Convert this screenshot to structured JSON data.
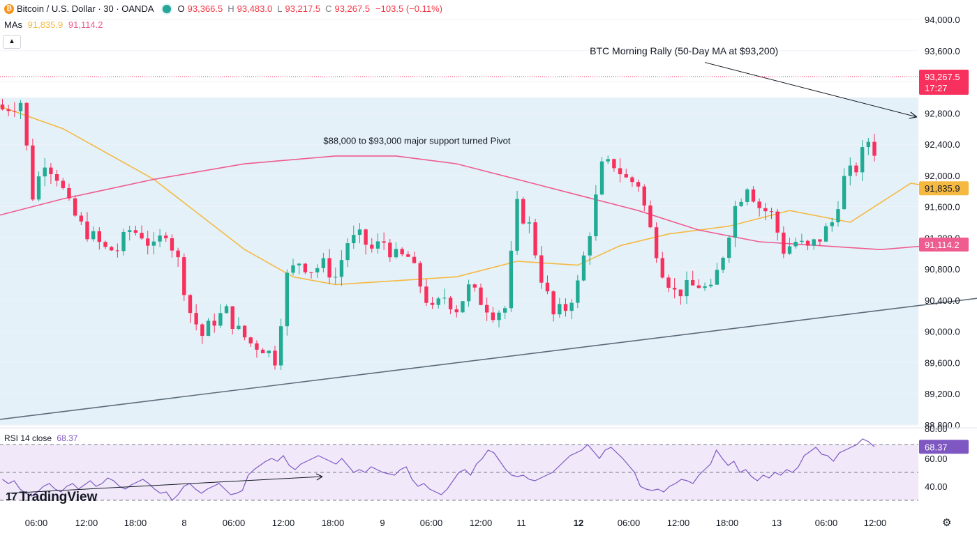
{
  "header": {
    "symbol": "Bitcoin / U.S. Dollar · 30 · OANDA",
    "btc_icon": "₿",
    "open_label": "O",
    "open": "93,366.5",
    "high_label": "H",
    "high": "93,483.0",
    "low_label": "L",
    "low": "93,217.5",
    "close_label": "C",
    "close": "93,267.5",
    "change": "−103.5 (−0.11%)"
  },
  "mas": {
    "label": "MAs",
    "ma1": "91,835.9",
    "ma2": "91,114.2"
  },
  "rsi": {
    "label": "RSI 14 close",
    "value": "68.37"
  },
  "logo": {
    "mark": "17",
    "text": "TradingView"
  },
  "icons": {
    "settings": "gear-icon",
    "collapse": "chevron-up-icon",
    "market_status": "market-open-dot-icon"
  },
  "colors": {
    "up": "#22ab94",
    "down": "#f7305d",
    "ma_fast": "#f5b942",
    "ma_slow": "#ef5c8f",
    "rsi": "#7e57c2",
    "zone": "#e4f1f8",
    "trendline": "#5d6b7a",
    "price_label": "#f7305d"
  },
  "chart_data": {
    "type": "candlestick",
    "title": "Bitcoin / U.S. Dollar · 30 · OANDA",
    "ylim": [
      88800,
      94000
    ],
    "y_ticks": [
      "94,000.0",
      "93,600.0",
      "93,200.0",
      "92,800.0",
      "92,400.0",
      "92,000.0",
      "91,600.0",
      "91,200.0",
      "90,800.0",
      "90,400.0",
      "90,000.0",
      "89,600.0",
      "89,200.0",
      "88,800.0"
    ],
    "x_ticks": [
      "06:00",
      "12:00",
      "18:00",
      "8",
      "06:00",
      "12:00",
      "18:00",
      "9",
      "06:00",
      "12:00",
      "11",
      "12",
      "06:00",
      "12:00",
      "18:00",
      "13",
      "06:00",
      "12:00"
    ],
    "x_ticks_bold": [
      "12"
    ],
    "candle_count": 145,
    "current_price": {
      "value": 93267.5,
      "label": "93,267.5",
      "timer": "17:27"
    },
    "candle_path": [
      [
        0,
        92850
      ],
      [
        3,
        92950
      ],
      [
        5,
        91750
      ],
      [
        7,
        92200
      ],
      [
        9,
        92000
      ],
      [
        11,
        91600
      ],
      [
        13,
        91350
      ],
      [
        15,
        91200
      ],
      [
        17,
        91050
      ],
      [
        19,
        91050
      ],
      [
        21,
        91300
      ],
      [
        23,
        91250
      ],
      [
        25,
        91050
      ],
      [
        27,
        91300
      ],
      [
        29,
        90900
      ],
      [
        31,
        90250
      ],
      [
        33,
        89950
      ],
      [
        35,
        90150
      ],
      [
        37,
        90250
      ],
      [
        39,
        90000
      ],
      [
        41,
        89850
      ],
      [
        43,
        89800
      ],
      [
        45,
        89650
      ],
      [
        47,
        90700
      ],
      [
        49,
        90900
      ],
      [
        51,
        90800
      ],
      [
        53,
        90850
      ],
      [
        55,
        90700
      ],
      [
        57,
        91150
      ],
      [
        59,
        91200
      ],
      [
        61,
        91050
      ],
      [
        63,
        91150
      ],
      [
        65,
        90950
      ],
      [
        67,
        90950
      ],
      [
        69,
        90600
      ],
      [
        71,
        90250
      ],
      [
        73,
        90450
      ],
      [
        75,
        90300
      ],
      [
        77,
        90550
      ],
      [
        79,
        90400
      ],
      [
        81,
        90250
      ],
      [
        83,
        90300
      ],
      [
        85,
        91600
      ],
      [
        87,
        91350
      ],
      [
        89,
        90700
      ],
      [
        91,
        90200
      ],
      [
        93,
        90300
      ],
      [
        95,
        90600
      ],
      [
        97,
        91300
      ],
      [
        99,
        92100
      ],
      [
        101,
        92150
      ],
      [
        103,
        91950
      ],
      [
        105,
        91900
      ],
      [
        107,
        91300
      ],
      [
        109,
        90800
      ],
      [
        111,
        90500
      ],
      [
        113,
        90550
      ],
      [
        115,
        90600
      ],
      [
        117,
        90500
      ],
      [
        119,
        91000
      ],
      [
        121,
        91600
      ],
      [
        123,
        91900
      ],
      [
        125,
        91600
      ],
      [
        127,
        91500
      ],
      [
        129,
        91050
      ],
      [
        131,
        91150
      ],
      [
        133,
        91050
      ],
      [
        135,
        91200
      ],
      [
        137,
        91400
      ],
      [
        139,
        91950
      ],
      [
        141,
        92100
      ],
      [
        143,
        92450
      ],
      [
        145,
        92200
      ],
      [
        147,
        92100
      ],
      [
        149,
        92050
      ],
      [
        151,
        92350
      ],
      [
        153,
        93100
      ],
      [
        155,
        93500
      ],
      [
        157,
        93350
      ],
      [
        159,
        93270
      ]
    ],
    "series": [
      {
        "name": "MA 91,835.9",
        "last": 91835.9,
        "values": [
          [
            -10,
            93150
          ],
          [
            10,
            92600
          ],
          [
            25,
            91950
          ],
          [
            40,
            91050
          ],
          [
            48,
            90700
          ],
          [
            55,
            90600
          ],
          [
            65,
            90650
          ],
          [
            75,
            90700
          ],
          [
            85,
            90900
          ],
          [
            95,
            90850
          ],
          [
            102,
            91100
          ],
          [
            110,
            91250
          ],
          [
            120,
            91350
          ],
          [
            130,
            91550
          ],
          [
            140,
            91400
          ],
          [
            150,
            91900
          ],
          [
            155,
            91835.9
          ]
        ]
      },
      {
        "name": "MA 91,114.2",
        "last": 91114.2,
        "values": [
          [
            -10,
            91300
          ],
          [
            10,
            91700
          ],
          [
            25,
            91950
          ],
          [
            40,
            92150
          ],
          [
            55,
            92250
          ],
          [
            65,
            92250
          ],
          [
            75,
            92150
          ],
          [
            85,
            91950
          ],
          [
            95,
            91750
          ],
          [
            105,
            91550
          ],
          [
            115,
            91300
          ],
          [
            125,
            91150
          ],
          [
            135,
            91100
          ],
          [
            145,
            91050
          ],
          [
            155,
            91114.2
          ]
        ]
      }
    ],
    "trendline": [
      [
        -10,
        88780
      ],
      [
        175,
        90560
      ]
    ],
    "support_zone": {
      "from": 88800,
      "to": 93000
    },
    "annotations": [
      {
        "text": "BTC Morning Rally (50-Day MA at $93,200)",
        "at": [
          97,
          93600
        ],
        "arrow_from": [
          116,
          93450
        ],
        "arrow_to": [
          151,
          92750
        ]
      },
      {
        "text": "$88,000 to $93,000 major support turned Pivot",
        "at": [
          53,
          92450
        ]
      }
    ],
    "rsi": {
      "name": "RSI 14 close",
      "last": 68.37,
      "ylim": [
        30,
        80
      ],
      "y_ticks": [
        "80.00",
        "60.00",
        "40.00"
      ],
      "bands": [
        70,
        50,
        30
      ],
      "values": [
        45,
        42,
        44,
        38,
        35,
        33,
        36,
        40,
        42,
        38,
        36,
        40,
        42,
        38,
        41,
        44,
        40,
        42,
        46,
        44,
        40,
        38,
        41,
        43,
        45,
        42,
        38,
        35,
        36,
        30,
        34,
        40,
        42,
        38,
        35,
        38,
        40,
        42,
        38,
        34,
        35,
        37,
        48,
        52,
        55,
        58,
        60,
        58,
        62,
        55,
        52,
        56,
        58,
        60,
        62,
        60,
        58,
        56,
        60,
        55,
        50,
        52,
        50,
        54,
        52,
        50,
        49,
        48,
        52,
        54,
        45,
        40,
        42,
        38,
        36,
        34,
        38,
        44,
        50,
        52,
        48,
        56,
        60,
        66,
        64,
        58,
        52,
        48,
        47,
        48,
        45,
        44,
        46,
        48,
        50,
        54,
        58,
        62,
        64,
        66,
        70,
        65,
        60,
        66,
        68,
        64,
        60,
        55,
        50,
        40,
        38,
        37,
        38,
        36,
        40,
        42,
        45,
        44,
        42,
        48,
        52,
        56,
        66,
        60,
        55,
        58,
        50,
        52,
        47,
        44,
        48,
        46,
        50,
        48,
        52,
        50,
        54,
        62,
        65,
        68,
        63,
        62,
        58,
        64,
        66,
        68,
        70,
        74,
        72,
        68.37
      ]
    }
  }
}
